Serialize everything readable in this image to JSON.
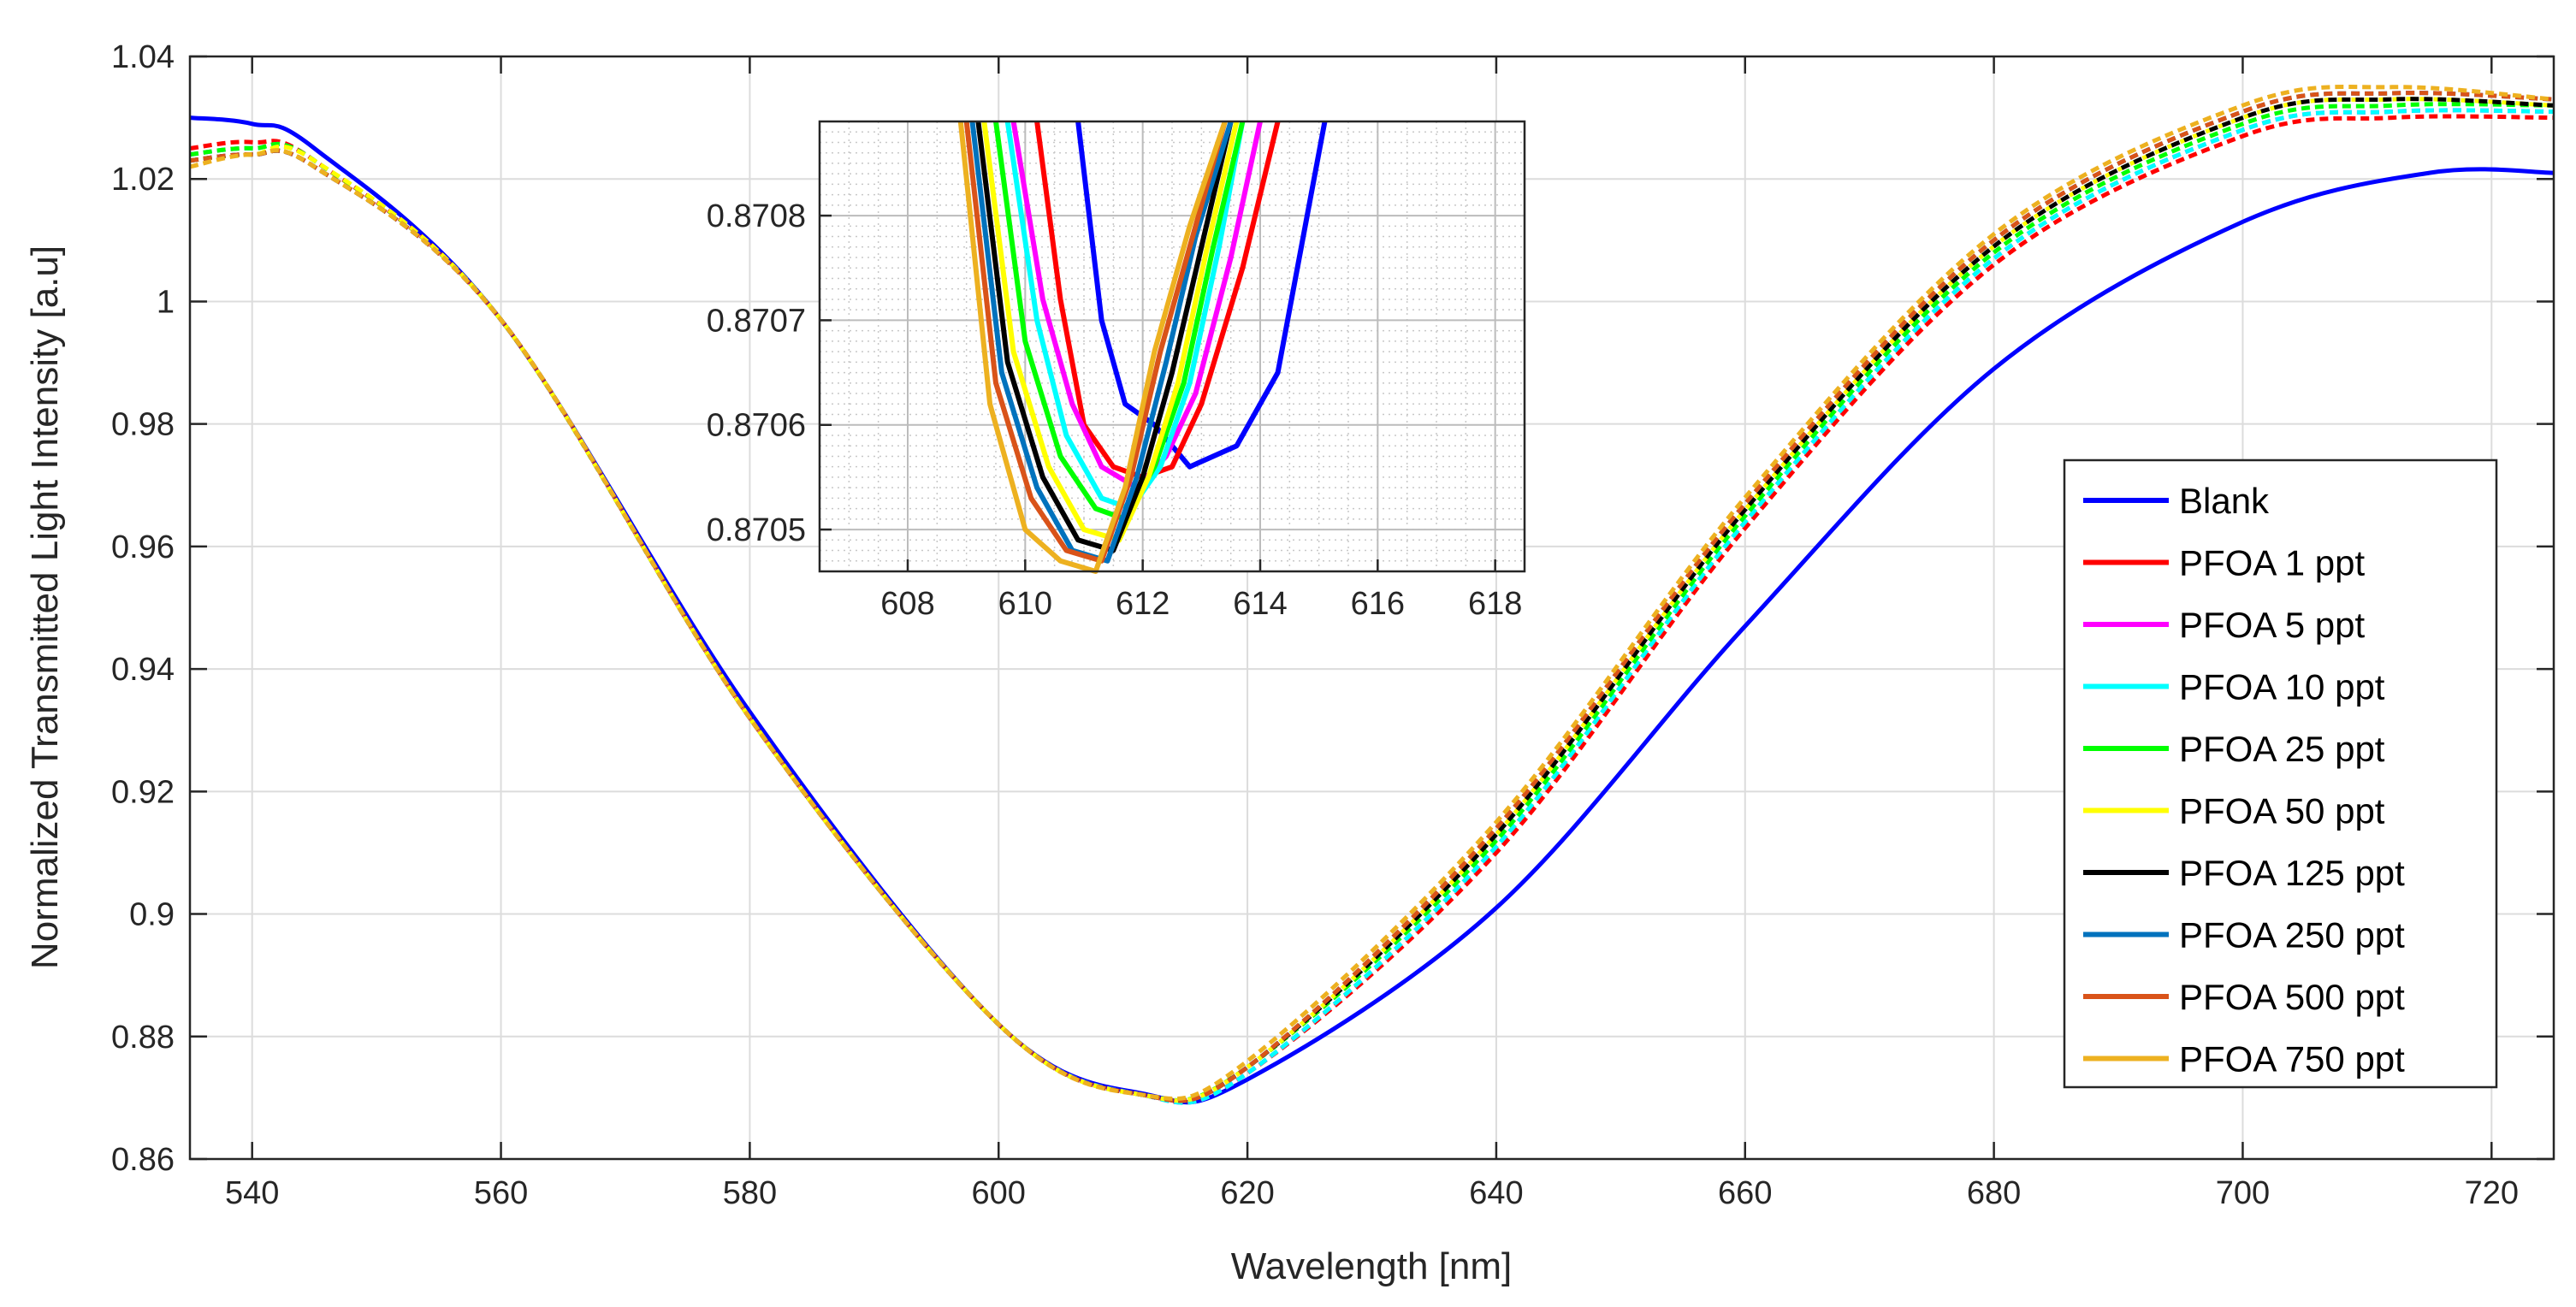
{
  "chart_data": [
    {
      "type": "line",
      "title": "",
      "xlabel": "Wavelength [nm]",
      "ylabel": "Normalized Transmitted Light Intensity [a.u]",
      "xlim": [
        535,
        725
      ],
      "ylim": [
        0.86,
        1.04
      ],
      "xticks": [
        540,
        560,
        580,
        600,
        620,
        640,
        660,
        680,
        700,
        720
      ],
      "xtick_labels": [
        "540",
        "560",
        "580",
        "600",
        "620",
        "640",
        "660",
        "680",
        "700",
        "720"
      ],
      "yticks": [
        0.86,
        0.88,
        0.9,
        0.92,
        0.94,
        0.96,
        0.98,
        1.0,
        1.02,
        1.04
      ],
      "ytick_labels": [
        "0.86",
        "0.88",
        "0.9",
        "0.92",
        "0.94",
        "0.96",
        "0.98",
        "1",
        "1.02",
        "1.04"
      ],
      "grid": true,
      "legend_position": "right",
      "series": [
        {
          "name": "Blank",
          "color": "#0000FF",
          "x": [
            535,
            540,
            545,
            560,
            580,
            600,
            612,
            620,
            640,
            660,
            680,
            700,
            715,
            725
          ],
          "y": [
            1.03,
            1.029,
            1.025,
            0.997,
            0.933,
            0.882,
            0.8705,
            0.873,
            0.901,
            0.947,
            0.989,
            1.013,
            1.021,
            1.021
          ]
        },
        {
          "name": "PFOA 1 ppt",
          "color": "#FF0000",
          "x": [
            535,
            540,
            545,
            560,
            580,
            600,
            611.5,
            620,
            640,
            660,
            680,
            700,
            712,
            725
          ],
          "y": [
            1.025,
            1.026,
            1.023,
            0.997,
            0.932,
            0.882,
            0.8705,
            0.874,
            0.91,
            0.963,
            1.006,
            1.027,
            1.03,
            1.03
          ]
        },
        {
          "name": "PFOA 5 ppt",
          "color": "#FF00FF",
          "x": [
            535,
            540,
            545,
            560,
            580,
            600,
            611.5,
            620,
            640,
            660,
            680,
            700,
            712,
            725
          ],
          "y": [
            1.024,
            1.025,
            1.023,
            0.997,
            0.932,
            0.882,
            0.8705,
            0.874,
            0.911,
            0.964,
            1.007,
            1.028,
            1.031,
            1.031
          ]
        },
        {
          "name": "PFOA 10 ppt",
          "color": "#00FFFF",
          "x": [
            535,
            540,
            545,
            560,
            580,
            600,
            611.5,
            620,
            640,
            660,
            680,
            700,
            712,
            725
          ],
          "y": [
            1.024,
            1.025,
            1.023,
            0.997,
            0.932,
            0.882,
            0.8705,
            0.874,
            0.911,
            0.964,
            1.007,
            1.028,
            1.031,
            1.031
          ]
        },
        {
          "name": "PFOA 25 ppt",
          "color": "#00FF00",
          "x": [
            535,
            540,
            545,
            560,
            580,
            600,
            611.5,
            620,
            640,
            660,
            680,
            700,
            712,
            725
          ],
          "y": [
            1.024,
            1.025,
            1.023,
            0.997,
            0.932,
            0.882,
            0.8705,
            0.875,
            0.912,
            0.965,
            1.008,
            1.029,
            1.032,
            1.032
          ]
        },
        {
          "name": "PFOA 50 ppt",
          "color": "#FFFF00",
          "x": [
            535,
            540,
            545,
            560,
            580,
            600,
            611.5,
            620,
            640,
            660,
            680,
            700,
            712,
            725
          ],
          "y": [
            1.023,
            1.024,
            1.023,
            0.997,
            0.932,
            0.882,
            0.8705,
            0.875,
            0.913,
            0.966,
            1.009,
            1.03,
            1.033,
            1.032
          ]
        },
        {
          "name": "PFOA 125 ppt",
          "color": "#000000",
          "x": [
            535,
            540,
            545,
            560,
            580,
            600,
            611.5,
            620,
            640,
            660,
            680,
            700,
            712,
            725
          ],
          "y": [
            1.023,
            1.024,
            1.022,
            0.997,
            0.932,
            0.882,
            0.8705,
            0.875,
            0.913,
            0.966,
            1.009,
            1.03,
            1.033,
            1.032
          ]
        },
        {
          "name": "PFOA 250 ppt",
          "color": "#0072BD",
          "x": [
            535,
            540,
            545,
            560,
            580,
            600,
            611.5,
            620,
            640,
            660,
            680,
            700,
            712,
            725
          ],
          "y": [
            1.023,
            1.024,
            1.022,
            0.997,
            0.932,
            0.882,
            0.8705,
            0.875,
            0.914,
            0.967,
            1.01,
            1.031,
            1.034,
            1.033
          ]
        },
        {
          "name": "PFOA 500 ppt",
          "color": "#D95319",
          "x": [
            535,
            540,
            545,
            560,
            580,
            600,
            611.5,
            620,
            640,
            660,
            680,
            700,
            712,
            725
          ],
          "y": [
            1.023,
            1.024,
            1.022,
            0.997,
            0.932,
            0.882,
            0.8705,
            0.875,
            0.914,
            0.967,
            1.01,
            1.031,
            1.034,
            1.033
          ]
        },
        {
          "name": "PFOA 750 ppt",
          "color": "#EDB120",
          "x": [
            535,
            540,
            545,
            560,
            580,
            600,
            611.5,
            620,
            640,
            660,
            680,
            700,
            712,
            725
          ],
          "y": [
            1.022,
            1.024,
            1.022,
            0.997,
            0.932,
            0.882,
            0.8705,
            0.876,
            0.915,
            0.968,
            1.011,
            1.032,
            1.035,
            1.033
          ]
        }
      ]
    },
    {
      "type": "line",
      "title": "",
      "xlabel": "",
      "ylabel": "",
      "xlim": [
        606.5,
        618.5
      ],
      "ylim": [
        0.87046,
        0.87089
      ],
      "xticks": [
        608,
        610,
        612,
        614,
        616,
        618
      ],
      "xtick_labels": [
        "608",
        "610",
        "612",
        "614",
        "616",
        "618"
      ],
      "yticks": [
        0.8705,
        0.8706,
        0.8707,
        0.8708
      ],
      "ytick_labels": [
        "0.8705",
        "0.8706",
        "0.8707",
        "0.8708"
      ],
      "grid": true,
      "minor_grid": true,
      "series": [
        {
          "name": "Blank",
          "color": "#0000FF",
          "x": [
            610.9,
            611.3,
            611.7,
            612.2,
            612.8,
            613.6,
            614.3,
            614.8,
            615.1
          ],
          "y": [
            0.87089,
            0.8707,
            0.87062,
            0.8706,
            0.87056,
            0.87058,
            0.87065,
            0.8708,
            0.87089
          ]
        },
        {
          "name": "PFOA 1 ppt",
          "color": "#FF0000",
          "x": [
            610.2,
            610.6,
            611.0,
            611.5,
            612.0,
            612.5,
            613.0,
            613.7,
            614.3
          ],
          "y": [
            0.87089,
            0.87072,
            0.8706,
            0.87056,
            0.87055,
            0.87056,
            0.87062,
            0.87075,
            0.87089
          ]
        },
        {
          "name": "PFOA 5 ppt",
          "color": "#FF00FF",
          "x": [
            609.8,
            610.3,
            610.8,
            611.3,
            611.9,
            612.4,
            612.9,
            613.5,
            614.0
          ],
          "y": [
            0.87089,
            0.87072,
            0.87062,
            0.87056,
            0.87054,
            0.87057,
            0.87063,
            0.87076,
            0.87089
          ]
        },
        {
          "name": "PFOA 10 ppt",
          "color": "#00FFFF",
          "x": [
            609.7,
            610.2,
            610.7,
            611.3,
            611.8,
            612.3,
            612.8,
            613.3,
            613.7
          ],
          "y": [
            0.87089,
            0.8707,
            0.87059,
            0.87053,
            0.87052,
            0.87056,
            0.87064,
            0.87077,
            0.87089
          ]
        },
        {
          "name": "PFOA 25 ppt",
          "color": "#00FF00",
          "x": [
            609.5,
            610.0,
            610.6,
            611.2,
            611.7,
            612.2,
            612.7,
            613.2,
            613.7
          ],
          "y": [
            0.87089,
            0.87068,
            0.87057,
            0.87052,
            0.87051,
            0.87056,
            0.87064,
            0.87077,
            0.87089
          ]
        },
        {
          "name": "PFOA 50 ppt",
          "color": "#FFFF00",
          "x": [
            609.3,
            609.8,
            610.4,
            611.0,
            611.6,
            612.1,
            612.6,
            613.1,
            613.6
          ],
          "y": [
            0.87089,
            0.87067,
            0.87056,
            0.8705,
            0.87049,
            0.87055,
            0.87064,
            0.87077,
            0.87089
          ]
        },
        {
          "name": "PFOA 125 ppt",
          "color": "#000000",
          "x": [
            609.2,
            609.7,
            610.3,
            610.9,
            611.5,
            612.0,
            612.5,
            613.0,
            613.5
          ],
          "y": [
            0.87089,
            0.87066,
            0.87055,
            0.87049,
            0.87048,
            0.87055,
            0.87065,
            0.87077,
            0.87089
          ]
        },
        {
          "name": "PFOA 250 ppt",
          "color": "#0072BD",
          "x": [
            609.1,
            609.6,
            610.2,
            610.8,
            611.4,
            611.9,
            612.4,
            612.9,
            613.5
          ],
          "y": [
            0.87089,
            0.87065,
            0.87054,
            0.87048,
            0.87047,
            0.87055,
            0.87066,
            0.87078,
            0.87089
          ]
        },
        {
          "name": "PFOA 500 ppt",
          "color": "#D95319",
          "x": [
            609.0,
            609.5,
            610.1,
            610.7,
            611.3,
            611.8,
            612.3,
            612.9,
            613.4
          ],
          "y": [
            0.87089,
            0.87064,
            0.87053,
            0.87048,
            0.87047,
            0.87055,
            0.87067,
            0.87079,
            0.87089
          ]
        },
        {
          "name": "PFOA 750 ppt",
          "color": "#EDB120",
          "x": [
            608.9,
            609.4,
            610.0,
            610.6,
            611.2,
            611.7,
            612.2,
            612.8,
            613.4
          ],
          "y": [
            0.87089,
            0.87062,
            0.8705,
            0.87047,
            0.87046,
            0.87054,
            0.87067,
            0.87079,
            0.87089
          ]
        }
      ]
    }
  ]
}
